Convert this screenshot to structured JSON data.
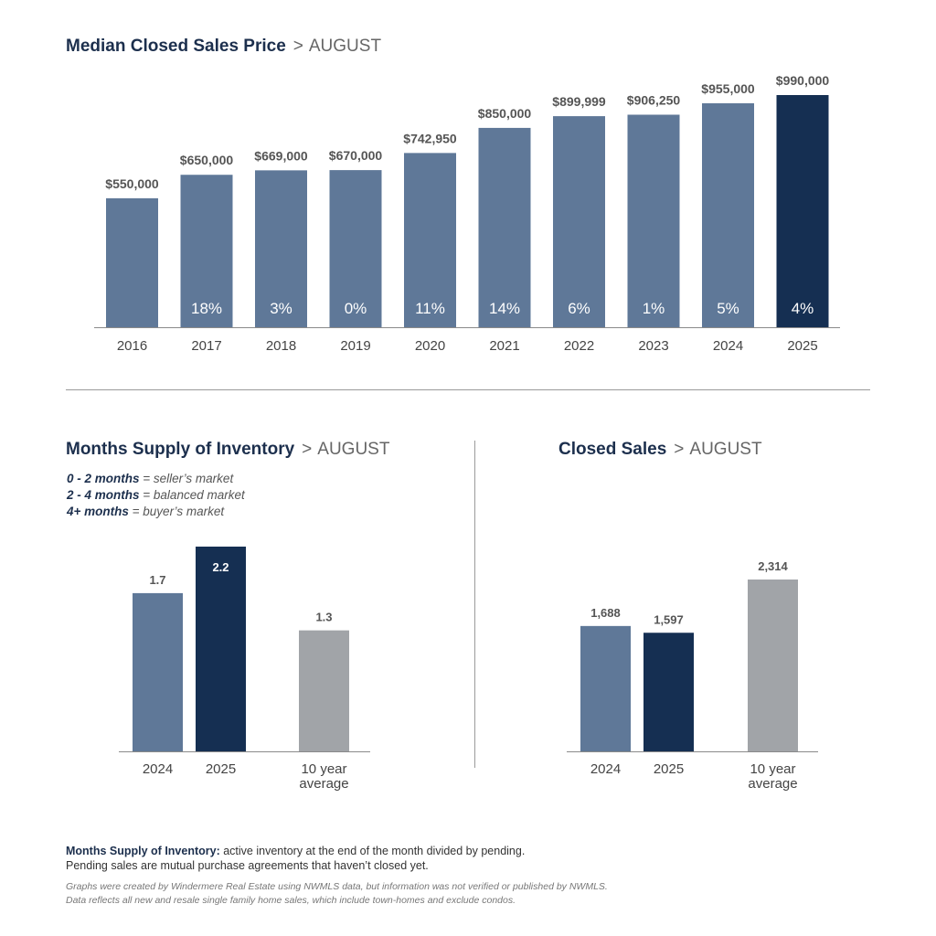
{
  "price_heading": {
    "title": "Median Closed Sales Price",
    "sep": ">",
    "month": "AUGUST"
  },
  "msi_heading": {
    "title": "Months Supply of Inventory",
    "sep": ">",
    "month": "AUGUST"
  },
  "sales_heading": {
    "title": "Closed Sales",
    "sep": ">",
    "month": "AUGUST"
  },
  "msi_legend": [
    {
      "range": "0 - 2 months",
      "meaning": "= seller’s market"
    },
    {
      "range": "2 - 4 months",
      "meaning": "= balanced market"
    },
    {
      "range": "4+ months",
      "meaning": "= buyer’s market"
    }
  ],
  "footnote": {
    "term": "Months Supply of Inventory:",
    "definition": "active inventory at the end of the month divided by pending.",
    "line2": "Pending sales are mutual purchase agreements that haven’t closed yet."
  },
  "disclaimer": {
    "line1": "Graphs were created by Windermere Real Estate using NWMLS data, but information was not verified or published by NWMLS.",
    "line2": "Data reflects all new and resale single family home sales, which include town-homes and exclude condos."
  },
  "colors": {
    "steel": "#5f7898",
    "navy": "#152f52",
    "gray": "#a1a4a8",
    "axis": "#8a8a8a"
  },
  "chart_data": [
    {
      "type": "bar",
      "title": "Median Closed Sales Price",
      "categories": [
        "2016",
        "2017",
        "2018",
        "2019",
        "2020",
        "2021",
        "2022",
        "2023",
        "2024",
        "2025"
      ],
      "values": [
        550000,
        650000,
        669000,
        670000,
        742950,
        850000,
        899999,
        906250,
        955000,
        990000
      ],
      "value_labels": [
        "$550,000",
        "$650,000",
        "$669,000",
        "$670,000",
        "$742,950",
        "$850,000",
        "$899,999",
        "$906,250",
        "$955,000",
        "$990,000"
      ],
      "pct_labels": [
        "",
        "18%",
        "3%",
        "0%",
        "11%",
        "14%",
        "6%",
        "1%",
        "5%",
        "4%"
      ],
      "bar_colors": [
        "steel",
        "steel",
        "steel",
        "steel",
        "steel",
        "steel",
        "steel",
        "steel",
        "steel",
        "navy"
      ],
      "ylim": [
        0,
        990000
      ],
      "xlabel": "",
      "ylabel": ""
    },
    {
      "type": "bar",
      "title": "Months Supply of Inventory",
      "categories": [
        "2024",
        "2025",
        "10 year average"
      ],
      "values": [
        1.7,
        2.2,
        1.3
      ],
      "value_labels": [
        "1.7",
        "2.2",
        "1.3"
      ],
      "bar_colors": [
        "steel",
        "navy",
        "gray"
      ],
      "ylim": [
        0,
        2.2
      ],
      "xlabel": "",
      "ylabel": ""
    },
    {
      "type": "bar",
      "title": "Closed Sales",
      "categories": [
        "2024",
        "2025",
        "10 year average"
      ],
      "values": [
        1688,
        1597,
        2314
      ],
      "value_labels": [
        "1,688",
        "1,597",
        "2,314"
      ],
      "bar_colors": [
        "steel",
        "navy",
        "gray"
      ],
      "ylim": [
        0,
        2314
      ],
      "xlabel": "",
      "ylabel": ""
    }
  ]
}
